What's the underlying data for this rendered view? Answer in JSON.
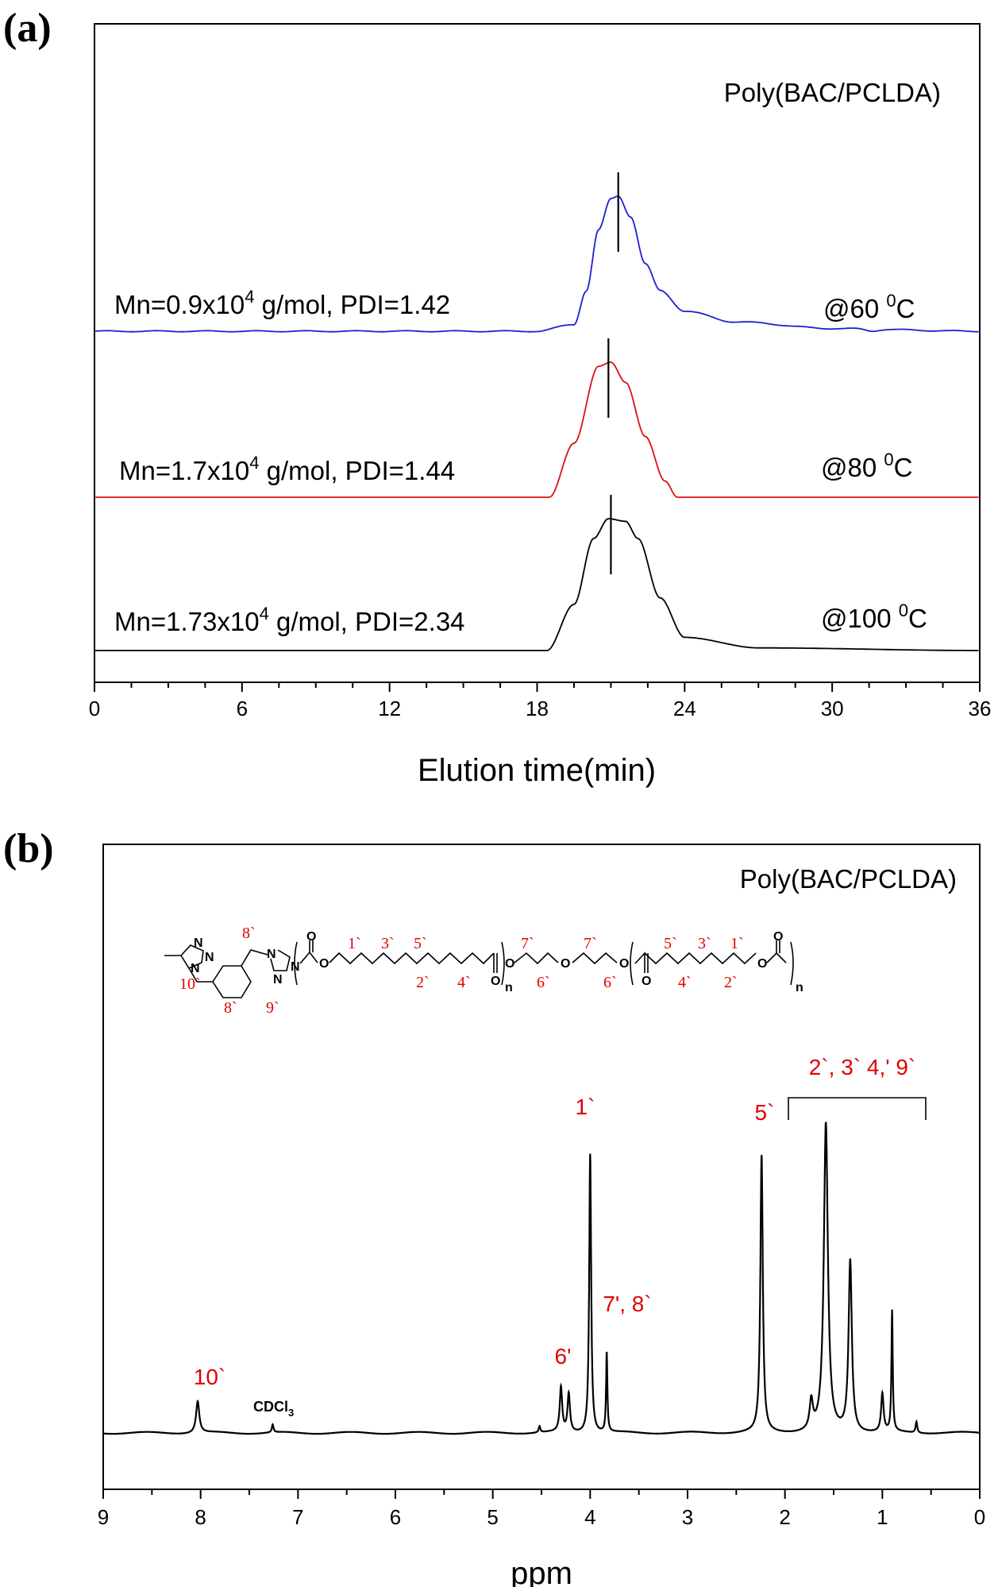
{
  "chart_data": [
    {
      "id": "a",
      "panel_label": "(a)",
      "type": "line",
      "title": "Poly(BAC/PCLDA)",
      "xlabel": "Elution time(min)",
      "ylabel": "",
      "xlim": [
        0,
        36
      ],
      "xticks": [
        0,
        6,
        12,
        18,
        24,
        30,
        36
      ],
      "series": [
        {
          "name": "@60 0C",
          "temp_label": "@60 ",
          "temp_sup": "0",
          "temp_unit": "C",
          "color": "#1f1fd0",
          "mn_text": "Mn=0.9x10",
          "mn_sup": "4",
          "mn_rest": " g/mol, PDI=1.42",
          "peak_x": 21.2,
          "marker_x": 21.3,
          "start_x": 19.6,
          "end_x": 25.0,
          "tail": 0.9,
          "x": [
            0,
            18,
            19.5,
            20.0,
            20.5,
            21.0,
            21.3,
            21.8,
            22.4,
            23.0,
            24.0,
            26.0,
            30.0,
            36.0
          ],
          "values": [
            0.0,
            0.0,
            0.05,
            0.3,
            0.75,
            0.98,
            1.0,
            0.85,
            0.5,
            0.3,
            0.15,
            0.07,
            0.02,
            0.0
          ]
        },
        {
          "name": "@80 0C",
          "temp_label": "@80 ",
          "temp_sup": "0",
          "temp_unit": "C",
          "color": "#e01010",
          "mn_text": "Mn=1.7x10",
          "mn_sup": "4",
          "mn_rest": " g/mol, PDI=1.44",
          "peak_x": 20.9,
          "marker_x": 20.9,
          "start_x": 18.5,
          "end_x": 23.7,
          "tail": 0.0,
          "x": [
            0,
            18.5,
            19.5,
            20.5,
            21.0,
            21.6,
            22.4,
            23.2,
            23.7,
            36.0
          ],
          "values": [
            0.0,
            0.0,
            0.4,
            0.97,
            1.0,
            0.85,
            0.45,
            0.12,
            0.0,
            0.0
          ]
        },
        {
          "name": "@100 0C",
          "temp_label": "@100 ",
          "temp_sup": "0",
          "temp_unit": "C",
          "color": "#000000",
          "mn_text": "Mn=1.73x10",
          "mn_sup": "4",
          "mn_rest": " g/mol, PDI=2.34",
          "peak_x": 21.0,
          "marker_x": 21.0,
          "start_x": 18.4,
          "end_x": 24.0,
          "tail": 1.0,
          "x": [
            0,
            18.4,
            19.5,
            20.3,
            20.9,
            21.6,
            22.1,
            23.0,
            24.0,
            27.0,
            36.0
          ],
          "values": [
            0.0,
            0.0,
            0.35,
            0.85,
            1.0,
            0.98,
            0.85,
            0.4,
            0.1,
            0.02,
            0.0
          ]
        }
      ]
    },
    {
      "id": "b",
      "panel_label": "(b)",
      "type": "line",
      "title": "Poly(BAC/PCLDA)",
      "xlabel": "ppm",
      "ylabel": "",
      "xlim": [
        9,
        0
      ],
      "xticks": [
        9,
        8,
        7,
        6,
        5,
        4,
        3,
        2,
        1,
        0
      ],
      "peaks": [
        {
          "ppm": 8.03,
          "height": 0.1,
          "width": 0.02
        },
        {
          "ppm": 7.26,
          "height": 0.025,
          "width": 0.01
        },
        {
          "ppm": 4.52,
          "height": 0.02,
          "width": 0.01
        },
        {
          "ppm": 4.3,
          "height": 0.14,
          "width": 0.015
        },
        {
          "ppm": 4.22,
          "height": 0.12,
          "width": 0.015
        },
        {
          "ppm": 4.0,
          "height": 0.88,
          "width": 0.012
        },
        {
          "ppm": 3.83,
          "height": 0.25,
          "width": 0.008
        },
        {
          "ppm": 2.24,
          "height": 0.87,
          "width": 0.015
        },
        {
          "ppm": 1.73,
          "height": 0.09,
          "width": 0.02
        },
        {
          "ppm": 1.58,
          "height": 0.97,
          "width": 0.025
        },
        {
          "ppm": 1.33,
          "height": 0.54,
          "width": 0.02
        },
        {
          "ppm": 1.0,
          "height": 0.12,
          "width": 0.015
        },
        {
          "ppm": 0.9,
          "height": 0.38,
          "width": 0.008
        },
        {
          "ppm": 0.65,
          "height": 0.035,
          "width": 0.01
        }
      ],
      "annotations": [
        {
          "text": "10`",
          "ppm": 8.05
        },
        {
          "text": "CDCl",
          "sub": "3",
          "ppm": 7.3
        },
        {
          "text": "6'",
          "ppm": 4.3
        },
        {
          "text": "1`",
          "ppm": 4.0
        },
        {
          "text": "7', 8`",
          "ppm": 3.7
        },
        {
          "text": "5`",
          "ppm": 2.3
        },
        {
          "text": "2`, 3` 4,' 9`",
          "ppm": 1.35
        }
      ],
      "structure_labels": {
        "n": "n",
        "o": "O",
        "n_atom": "N",
        "red": [
          "8`",
          "1`",
          "3`",
          "5`",
          "7`",
          "7`",
          "5`",
          "3`",
          "1`",
          "10`",
          "8`",
          "9`",
          "2`",
          "4`",
          "6`",
          "6`",
          "4`",
          "2`"
        ]
      }
    }
  ]
}
